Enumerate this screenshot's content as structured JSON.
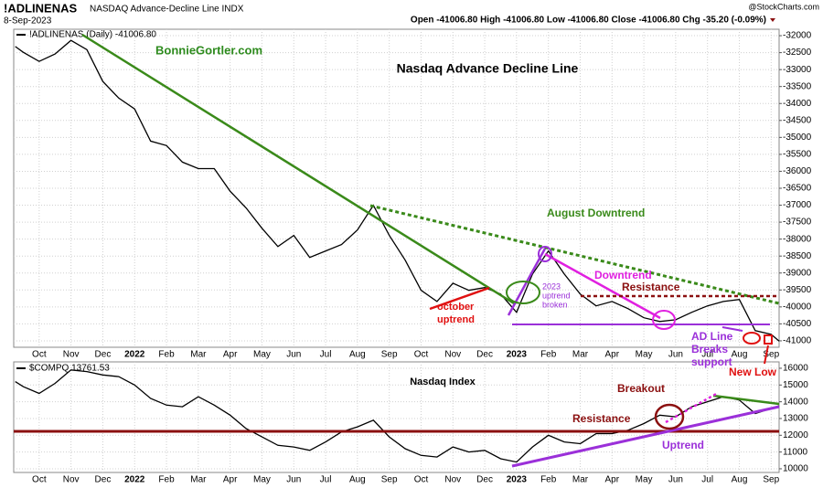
{
  "header": {
    "symbol": "!ADLINENAS",
    "name": "NASDAQ Advance-Decline Line INDX",
    "date": "8-Sep-2023",
    "ohlc": "Open -41006.80  High -41006.80  Low -41006.80  Close -41006.80  Chg -35.20 (-0.09%)",
    "source": "@StockCharts.com"
  },
  "chart_data": [
    {
      "type": "line",
      "title": "Nasdaq Advance Decline Line",
      "x": [
        -0.75,
        -0.5,
        0,
        0.5,
        1,
        1.5,
        2,
        2.5,
        3,
        3.5,
        4,
        4.5,
        5,
        5.5,
        6,
        6.5,
        7,
        7.5,
        8,
        8.5,
        9,
        9.5,
        10,
        10.5,
        11,
        11.5,
        12,
        12.5,
        13,
        13.5,
        14,
        14.5,
        15,
        15.5,
        16,
        16.5,
        17,
        17.5,
        18,
        18.5,
        19,
        19.5,
        20,
        20.5,
        21,
        21.5,
        22,
        22.5,
        23,
        23.25
      ],
      "series": [
        {
          "name": "!ADLINENAS (Daily) -41006.80",
          "color": "#000000",
          "values": [
            -32320,
            -32490,
            -32760,
            -32540,
            -32140,
            -32410,
            -33350,
            -33840,
            -34160,
            -35110,
            -35240,
            -35730,
            -35920,
            -35920,
            -36590,
            -37080,
            -37680,
            -38220,
            -37890,
            -38540,
            -38350,
            -38160,
            -37730,
            -37000,
            -37890,
            -38620,
            -39510,
            -39840,
            -39300,
            -39510,
            -39430,
            -39620,
            -40160,
            -39030,
            -38350,
            -39030,
            -39620,
            -39970,
            -39840,
            -40050,
            -40320,
            -40430,
            -40380,
            -40160,
            -39970,
            -39840,
            -39780,
            -40700,
            -40810,
            -41006.8
          ]
        }
      ],
      "xlim": [
        -0.8,
        23.25
      ],
      "xticks": [
        {
          "value": 0,
          "label": "Oct"
        },
        {
          "value": 1,
          "label": "Nov"
        },
        {
          "value": 2,
          "label": "Dec"
        },
        {
          "value": 3,
          "label": "2022"
        },
        {
          "value": 4,
          "label": "Feb"
        },
        {
          "value": 5,
          "label": "Mar"
        },
        {
          "value": 6,
          "label": "Apr"
        },
        {
          "value": 7,
          "label": "May"
        },
        {
          "value": 8,
          "label": "Jun"
        },
        {
          "value": 9,
          "label": "Jul"
        },
        {
          "value": 10,
          "label": "Aug"
        },
        {
          "value": 11,
          "label": "Sep"
        },
        {
          "value": 12,
          "label": "Oct"
        },
        {
          "value": 13,
          "label": "Nov"
        },
        {
          "value": 14,
          "label": "Dec"
        },
        {
          "value": 15,
          "label": "2023"
        },
        {
          "value": 16,
          "label": "Feb"
        },
        {
          "value": 17,
          "label": "Mar"
        },
        {
          "value": 18,
          "label": "Apr"
        },
        {
          "value": 19,
          "label": "May"
        },
        {
          "value": 20,
          "label": "Jun"
        },
        {
          "value": 21,
          "label": "Jul"
        },
        {
          "value": 22,
          "label": "Aug"
        },
        {
          "value": 23,
          "label": "Sep"
        }
      ],
      "ylim": [
        -41190,
        -31810
      ],
      "yticks": [
        -32000,
        -32500,
        -33000,
        -33500,
        -34000,
        -34500,
        -35000,
        -35500,
        -36000,
        -36500,
        -37000,
        -37500,
        -38000,
        -38500,
        -39000,
        -39500,
        -40000,
        -40500,
        -41000
      ],
      "grid": true,
      "annotations": [
        {
          "text": "BonnieGortler.com",
          "color": "#2e8b1e"
        },
        {
          "text": "August Downtrend",
          "color": "#3a8a1a"
        },
        {
          "text": "2023",
          "color": "#9b30d9"
        },
        {
          "text": "uptrend",
          "color": "#9b30d9"
        },
        {
          "text": "broken",
          "color": "#9b30d9"
        },
        {
          "text": "Downtrend",
          "color": "#e020e0"
        },
        {
          "text": "Resistance",
          "color": "#8b1010"
        },
        {
          "text": "october",
          "color": "#e01010"
        },
        {
          "text": "uptrend",
          "color": "#e01010"
        },
        {
          "text": "AD Line",
          "color": "#9b30d9"
        },
        {
          "text": "Breaks",
          "color": "#9b30d9"
        },
        {
          "text": "support",
          "color": "#9b30d9"
        },
        {
          "text": "New Low",
          "color": "#e01010"
        }
      ]
    },
    {
      "type": "line",
      "title": "Nasdaq Index",
      "x": [
        -0.75,
        -0.5,
        0,
        0.5,
        1,
        1.5,
        2,
        2.5,
        3,
        3.5,
        4,
        4.5,
        5,
        5.5,
        6,
        6.5,
        7,
        7.5,
        8,
        8.5,
        9,
        9.5,
        10,
        10.5,
        11,
        11.5,
        12,
        12.5,
        13,
        13.5,
        14,
        14.5,
        15,
        15.5,
        16,
        16.5,
        17,
        17.5,
        18,
        18.5,
        19,
        19.5,
        20,
        20.5,
        21,
        21.5,
        22,
        22.5,
        23,
        23.25
      ],
      "series": [
        {
          "name": "$COMPQ 13761.53",
          "color": "#000000",
          "values": [
            15200,
            14900,
            14500,
            15100,
            15900,
            15800,
            15600,
            15500,
            15000,
            14200,
            13800,
            13700,
            14300,
            13800,
            13200,
            12400,
            11900,
            11400,
            11300,
            11100,
            11600,
            12200,
            12500,
            12900,
            11900,
            11200,
            10800,
            10700,
            11300,
            11000,
            11100,
            10600,
            10400,
            11300,
            12000,
            11600,
            11500,
            12100,
            12100,
            12300,
            12700,
            13200,
            13100,
            13700,
            14000,
            14300,
            14100,
            13300,
            13600,
            13761.53
          ]
        }
      ],
      "xlim": [
        -0.8,
        23.25
      ],
      "xticks": [
        {
          "value": 0,
          "label": "Oct"
        },
        {
          "value": 1,
          "label": "Nov"
        },
        {
          "value": 2,
          "label": "Dec"
        },
        {
          "value": 3,
          "label": "2022"
        },
        {
          "value": 4,
          "label": "Feb"
        },
        {
          "value": 5,
          "label": "Mar"
        },
        {
          "value": 6,
          "label": "Apr"
        },
        {
          "value": 7,
          "label": "May"
        },
        {
          "value": 8,
          "label": "Jun"
        },
        {
          "value": 9,
          "label": "Jul"
        },
        {
          "value": 10,
          "label": "Aug"
        },
        {
          "value": 11,
          "label": "Sep"
        },
        {
          "value": 12,
          "label": "Oct"
        },
        {
          "value": 13,
          "label": "Nov"
        },
        {
          "value": 14,
          "label": "Dec"
        },
        {
          "value": 15,
          "label": "2023"
        },
        {
          "value": 16,
          "label": "Feb"
        },
        {
          "value": 17,
          "label": "Mar"
        },
        {
          "value": 18,
          "label": "Apr"
        },
        {
          "value": 19,
          "label": "May"
        },
        {
          "value": 20,
          "label": "Jun"
        },
        {
          "value": 21,
          "label": "Jul"
        },
        {
          "value": 22,
          "label": "Aug"
        },
        {
          "value": 23,
          "label": "Sep"
        }
      ],
      "ylim": [
        9780,
        16380
      ],
      "yticks": [
        10000,
        11000,
        12000,
        13000,
        14000,
        15000,
        16000
      ],
      "grid": true,
      "annotations": [
        {
          "text": "Breakout",
          "color": "#8b1010"
        },
        {
          "text": "Resistance",
          "color": "#8b1010"
        },
        {
          "text": "Uptrend",
          "color": "#9b30d9"
        }
      ]
    }
  ]
}
